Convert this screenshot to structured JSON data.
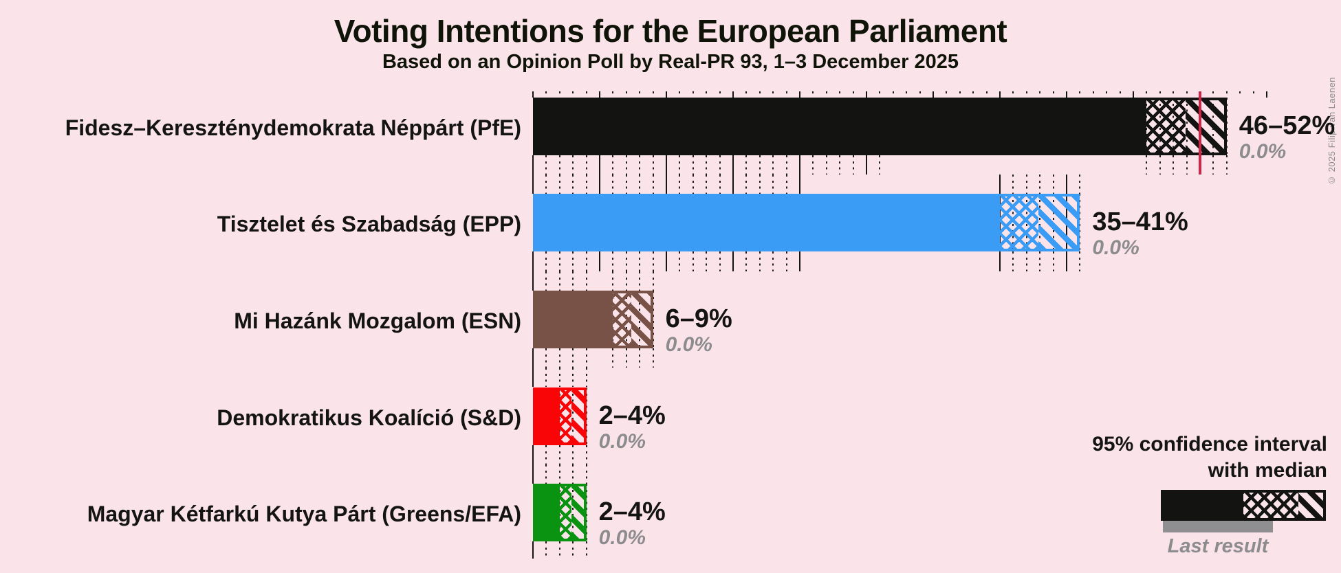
{
  "header": {
    "title": "Voting Intentions for the European Parliament",
    "subtitle": "Based on an Opinion Poll by Real-PR 93, 1–3 December 2025",
    "copyright": "© 2025 Filip van Laenen"
  },
  "legend": {
    "ci_label_line1": "95% confidence interval",
    "ci_label_line2": "with median",
    "last_result_label": "Last result"
  },
  "colors": {
    "background": "#FBE4E9",
    "majority_line": "#CE2647",
    "grid": "#1c1c1c",
    "value_text": "#141414",
    "last_result_text": "#8C8C8F",
    "legend_last_result_bar": "#8F8F92"
  },
  "chart_data": {
    "type": "bar",
    "orientation": "horizontal",
    "title": "Voting Intentions for the European Parliament",
    "subtitle": "Based on an Opinion Poll by Real-PR 93, 1–3 December 2025",
    "x_axis": {
      "min": 0,
      "max": 55,
      "unit": "%",
      "minor_tick_step": 1,
      "major_tick_step": 5,
      "tick_labels_shown": false
    },
    "majority_line_value": 50,
    "legend_position": "bottom-right",
    "grid": true,
    "series": [
      {
        "label": "Fidesz–Kereszténydemokrata Néppárt (PfE)",
        "color": "#131311",
        "ci_low": 46,
        "median": 49,
        "ci_high": 52,
        "ci_label": "46–52%",
        "last_result": 0.0,
        "last_result_label": "0.0%"
      },
      {
        "label": "Tisztelet és Szabadság (EPP)",
        "color": "#3B9CF6",
        "ci_low": 35,
        "median": 38,
        "ci_high": 41,
        "ci_label": "35–41%",
        "last_result": 0.0,
        "last_result_label": "0.0%"
      },
      {
        "label": "Mi Hazánk Mozgalom (ESN)",
        "color": "#785147",
        "ci_low": 6,
        "median": 7.5,
        "ci_high": 9,
        "ci_label": "6–9%",
        "last_result": 0.0,
        "last_result_label": "0.0%"
      },
      {
        "label": "Demokratikus Koalíció (S&D)",
        "color": "#FA0507",
        "ci_low": 2,
        "median": 3,
        "ci_high": 4,
        "ci_label": "2–4%",
        "last_result": 0.0,
        "last_result_label": "0.0%"
      },
      {
        "label": "Magyar Kétfarkú Kutya Párt (Greens/EFA)",
        "color": "#0A9311",
        "ci_low": 2,
        "median": 3,
        "ci_high": 4,
        "ci_label": "2–4%",
        "last_result": 0.0,
        "last_result_label": "0.0%"
      }
    ]
  }
}
